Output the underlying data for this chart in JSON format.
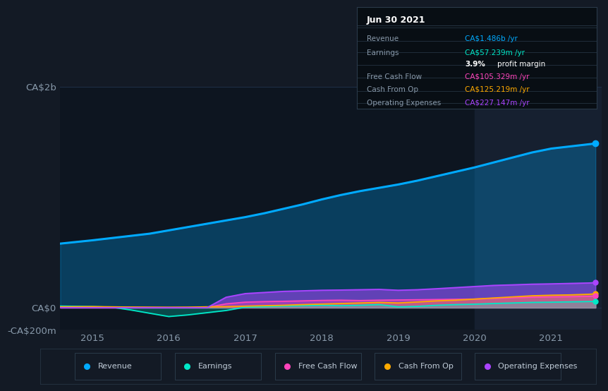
{
  "background_color": "#131a25",
  "plot_bg_color": "#0d1520",
  "grid_color": "#1e3048",
  "axis_label_color": "#8899aa",
  "text_color": "#c0ccd8",
  "years": [
    2014.58,
    2015.0,
    2015.25,
    2015.5,
    2015.75,
    2016.0,
    2016.25,
    2016.5,
    2016.75,
    2017.0,
    2017.25,
    2017.5,
    2017.75,
    2018.0,
    2018.25,
    2018.5,
    2018.75,
    2019.0,
    2019.25,
    2019.5,
    2019.75,
    2020.0,
    2020.25,
    2020.5,
    2020.75,
    2021.0,
    2021.25,
    2021.5,
    2021.58
  ],
  "revenue": [
    580,
    610,
    630,
    650,
    670,
    700,
    730,
    760,
    790,
    820,
    855,
    895,
    935,
    980,
    1020,
    1055,
    1085,
    1115,
    1150,
    1190,
    1230,
    1270,
    1315,
    1360,
    1405,
    1440,
    1460,
    1480,
    1486
  ],
  "earnings": [
    15,
    10,
    5,
    -20,
    -50,
    -80,
    -65,
    -45,
    -25,
    5,
    10,
    15,
    18,
    22,
    18,
    22,
    28,
    8,
    12,
    22,
    28,
    32,
    38,
    43,
    48,
    50,
    53,
    56,
    57.239
  ],
  "free_cash_flow": [
    4,
    4,
    3,
    3,
    2,
    2,
    2,
    2,
    35,
    50,
    55,
    58,
    62,
    66,
    68,
    65,
    68,
    70,
    72,
    74,
    76,
    78,
    85,
    90,
    95,
    98,
    100,
    103,
    105.329
  ],
  "cash_from_op": [
    8,
    10,
    8,
    6,
    5,
    4,
    5,
    8,
    10,
    14,
    18,
    22,
    28,
    33,
    38,
    43,
    48,
    43,
    52,
    62,
    68,
    78,
    88,
    98,
    108,
    113,
    116,
    122,
    125.219
  ],
  "operating_expenses": [
    0,
    0,
    0,
    0,
    0,
    0,
    0,
    0,
    95,
    128,
    138,
    148,
    153,
    158,
    160,
    163,
    166,
    158,
    163,
    172,
    182,
    192,
    202,
    207,
    213,
    216,
    220,
    224,
    227.147
  ],
  "revenue_color": "#00aaff",
  "earnings_color": "#00e8c8",
  "free_cash_flow_color": "#ff44bb",
  "cash_from_op_color": "#ffaa00",
  "operating_expenses_color": "#aa44ff",
  "ylim_min": -200,
  "ylim_max": 2000,
  "yticks": [
    -200,
    0,
    2000
  ],
  "ytick_labels": [
    "-CA$200m",
    "CA$0",
    "CA$2b"
  ],
  "xticks": [
    2015,
    2016,
    2017,
    2018,
    2019,
    2020,
    2021
  ],
  "xtick_labels": [
    "2015",
    "2016",
    "2017",
    "2018",
    "2019",
    "2020",
    "2021"
  ],
  "highlight_start": 2020.0,
  "highlight_color": "#162030",
  "infobox": {
    "title": "Jun 30 2021",
    "bg_color": "#080e14",
    "border_color": "#2a3a4a",
    "rows": [
      {
        "label": "Revenue",
        "value": "CA$1.486b /yr",
        "value_color": "#00aaff",
        "label_color": "#8899aa"
      },
      {
        "label": "Earnings",
        "value": "CA$57.239m /yr",
        "value_color": "#00e8c8",
        "label_color": "#8899aa"
      },
      {
        "label": "",
        "value": "",
        "value_color": "#ffffff",
        "label_color": "#ffffff"
      },
      {
        "label": "Free Cash Flow",
        "value": "CA$105.329m /yr",
        "value_color": "#ff44bb",
        "label_color": "#8899aa"
      },
      {
        "label": "Cash From Op",
        "value": "CA$125.219m /yr",
        "value_color": "#ffaa00",
        "label_color": "#8899aa"
      },
      {
        "label": "Operating Expenses",
        "value": "CA$227.147m /yr",
        "value_color": "#aa44ff",
        "label_color": "#8899aa"
      }
    ]
  },
  "legend_items": [
    {
      "label": "Revenue",
      "color": "#00aaff"
    },
    {
      "label": "Earnings",
      "color": "#00e8c8"
    },
    {
      "label": "Free Cash Flow",
      "color": "#ff44bb"
    },
    {
      "label": "Cash From Op",
      "color": "#ffaa00"
    },
    {
      "label": "Operating Expenses",
      "color": "#aa44ff"
    }
  ]
}
